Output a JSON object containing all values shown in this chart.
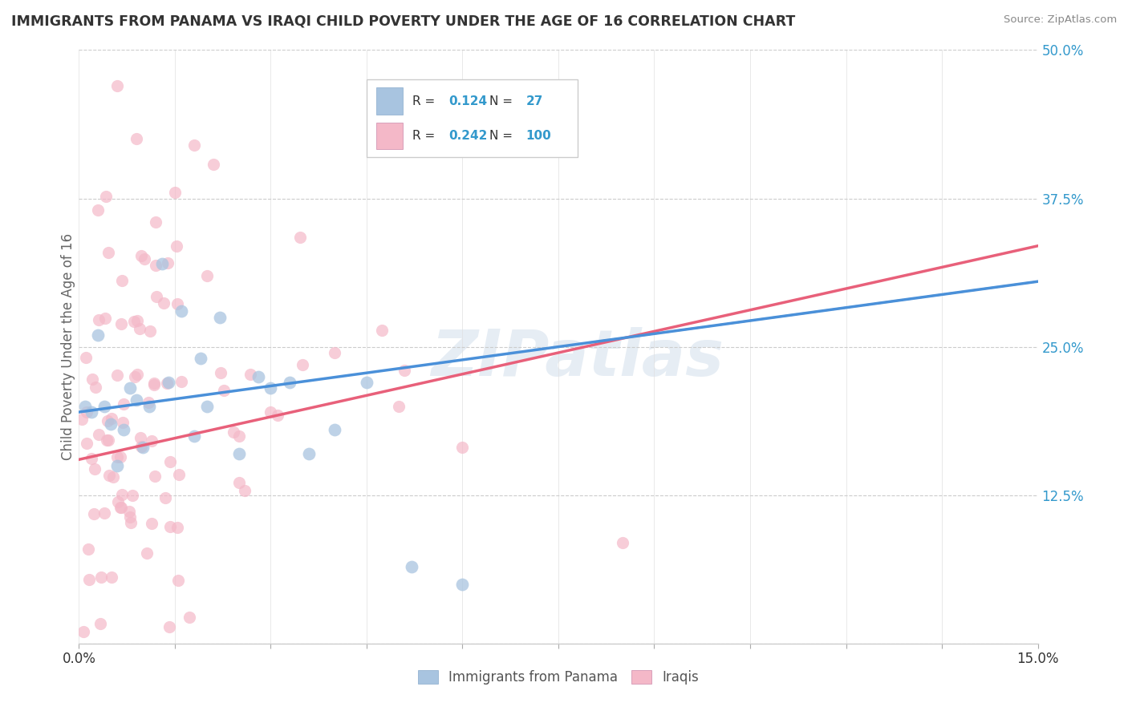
{
  "title": "IMMIGRANTS FROM PANAMA VS IRAQI CHILD POVERTY UNDER THE AGE OF 16 CORRELATION CHART",
  "source": "Source: ZipAtlas.com",
  "ylabel": "Child Poverty Under the Age of 16",
  "xmin": 0.0,
  "xmax": 0.15,
  "ymin": 0.0,
  "ymax": 0.5,
  "xtick_positions": [
    0.0,
    0.015,
    0.03,
    0.045,
    0.06,
    0.075,
    0.09,
    0.105,
    0.12,
    0.135,
    0.15
  ],
  "xtick_labels_sparse": {
    "0.0": "0.0%",
    "0.15": "15.0%"
  },
  "ytick_positions": [
    0.0,
    0.125,
    0.25,
    0.375,
    0.5
  ],
  "ytick_labels": [
    "",
    "12.5%",
    "25.0%",
    "37.5%",
    "50.0%"
  ],
  "color_blue": "#a8c4e0",
  "color_pink": "#f4b8c8",
  "color_blue_line": "#4a90d9",
  "color_pink_line": "#e8607a",
  "color_gray_dash": "#aaaaaa",
  "blue_trend_x": [
    0.0,
    0.15
  ],
  "blue_trend_y": [
    0.195,
    0.305
  ],
  "pink_trend_x": [
    0.0,
    0.15
  ],
  "pink_trend_y": [
    0.155,
    0.335
  ],
  "watermark": "ZIPatlas",
  "background_color": "#ffffff",
  "legend_R_blue": "0.124",
  "legend_N_blue": "27",
  "legend_R_pink": "0.242",
  "legend_N_pink": "100",
  "bottom_legend_blue": "Immigrants from Panama",
  "bottom_legend_pink": "Iraqis"
}
